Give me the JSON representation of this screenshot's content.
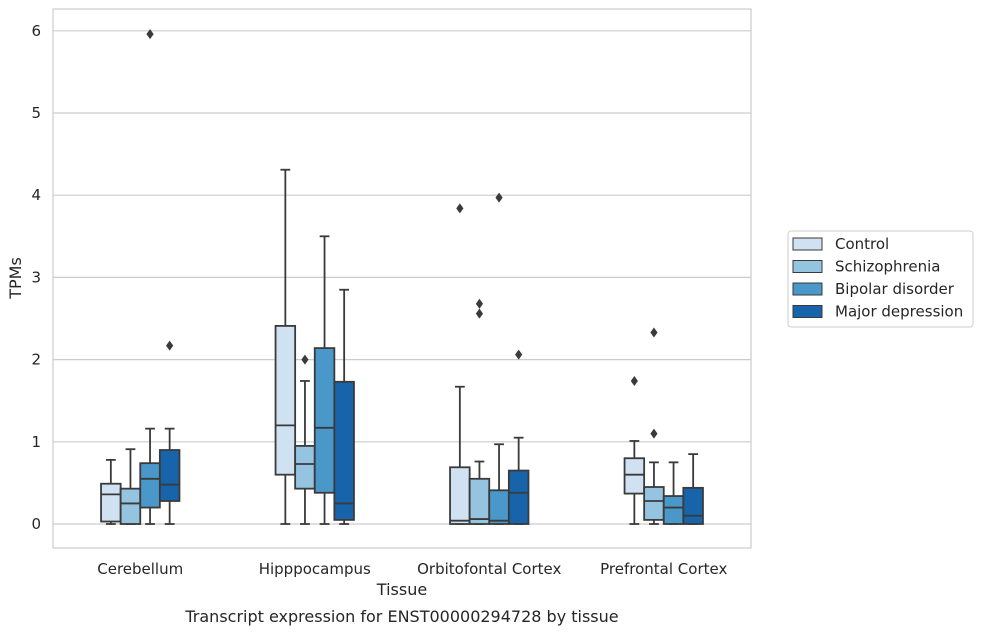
{
  "chart_data": {
    "type": "box",
    "caption": "Transcript expression for ENST00000294728 by tissue",
    "xlabel": "Tissue",
    "ylabel": "TPMs",
    "ylim": [
      -0.3,
      6.27
    ],
    "yticks": [
      0,
      1,
      2,
      3,
      4,
      5,
      6
    ],
    "grid": "horizontal",
    "legend_position": "right",
    "categories": [
      "Cerebellum",
      "Hipppocampus",
      "Orbitofontal Cortex",
      "Prefrontal Cortex"
    ],
    "series": [
      {
        "name": "Control",
        "color": "#d0e1f2",
        "boxes": [
          {
            "whisker_low": 0,
            "q1": 0.03,
            "median": 0.36,
            "q3": 0.49,
            "whisker_high": 0.78,
            "outliers": []
          },
          {
            "whisker_low": 0,
            "q1": 0.6,
            "median": 1.2,
            "q3": 2.41,
            "whisker_high": 4.31,
            "outliers": []
          },
          {
            "whisker_low": 0,
            "q1": 0,
            "median": 0.04,
            "q3": 0.69,
            "whisker_high": 1.67,
            "outliers": [
              3.84
            ]
          },
          {
            "whisker_low": 0,
            "q1": 0.37,
            "median": 0.6,
            "q3": 0.8,
            "whisker_high": 1.01,
            "outliers": [
              1.74
            ]
          }
        ]
      },
      {
        "name": "Schizophrenia",
        "color": "#94c4df",
        "boxes": [
          {
            "whisker_low": 0,
            "q1": 0,
            "median": 0.25,
            "q3": 0.43,
            "whisker_high": 0.91,
            "outliers": []
          },
          {
            "whisker_low": 0,
            "q1": 0.43,
            "median": 0.73,
            "q3": 0.95,
            "whisker_high": 1.74,
            "outliers": [
              2.0
            ]
          },
          {
            "whisker_low": 0,
            "q1": 0,
            "median": 0.06,
            "q3": 0.55,
            "whisker_high": 0.76,
            "outliers": [
              2.56,
              2.68
            ]
          },
          {
            "whisker_low": 0,
            "q1": 0.05,
            "median": 0.28,
            "q3": 0.45,
            "whisker_high": 0.75,
            "outliers": [
              1.1,
              2.33
            ]
          }
        ]
      },
      {
        "name": "Bipolar disorder",
        "color": "#4a98c9",
        "boxes": [
          {
            "whisker_low": 0,
            "q1": 0.2,
            "median": 0.55,
            "q3": 0.74,
            "whisker_high": 1.16,
            "outliers": [
              5.96
            ]
          },
          {
            "whisker_low": 0,
            "q1": 0.38,
            "median": 1.17,
            "q3": 2.14,
            "whisker_high": 3.5,
            "outliers": []
          },
          {
            "whisker_low": 0,
            "q1": 0,
            "median": 0.04,
            "q3": 0.41,
            "whisker_high": 0.97,
            "outliers": [
              3.97
            ]
          },
          {
            "whisker_low": 0,
            "q1": 0,
            "median": 0.2,
            "q3": 0.34,
            "whisker_high": 0.75,
            "outliers": []
          }
        ]
      },
      {
        "name": "Major depression",
        "color": "#1764ab",
        "boxes": [
          {
            "whisker_low": 0,
            "q1": 0.28,
            "median": 0.48,
            "q3": 0.9,
            "whisker_high": 1.16,
            "outliers": [
              2.17
            ]
          },
          {
            "whisker_low": 0,
            "q1": 0.05,
            "median": 0.25,
            "q3": 1.73,
            "whisker_high": 2.85,
            "outliers": []
          },
          {
            "whisker_low": 0,
            "q1": 0,
            "median": 0.38,
            "q3": 0.65,
            "whisker_high": 1.05,
            "outliers": [
              2.06
            ]
          },
          {
            "whisker_low": 0,
            "q1": 0,
            "median": 0.1,
            "q3": 0.44,
            "whisker_high": 0.85,
            "outliers": []
          }
        ]
      }
    ]
  }
}
